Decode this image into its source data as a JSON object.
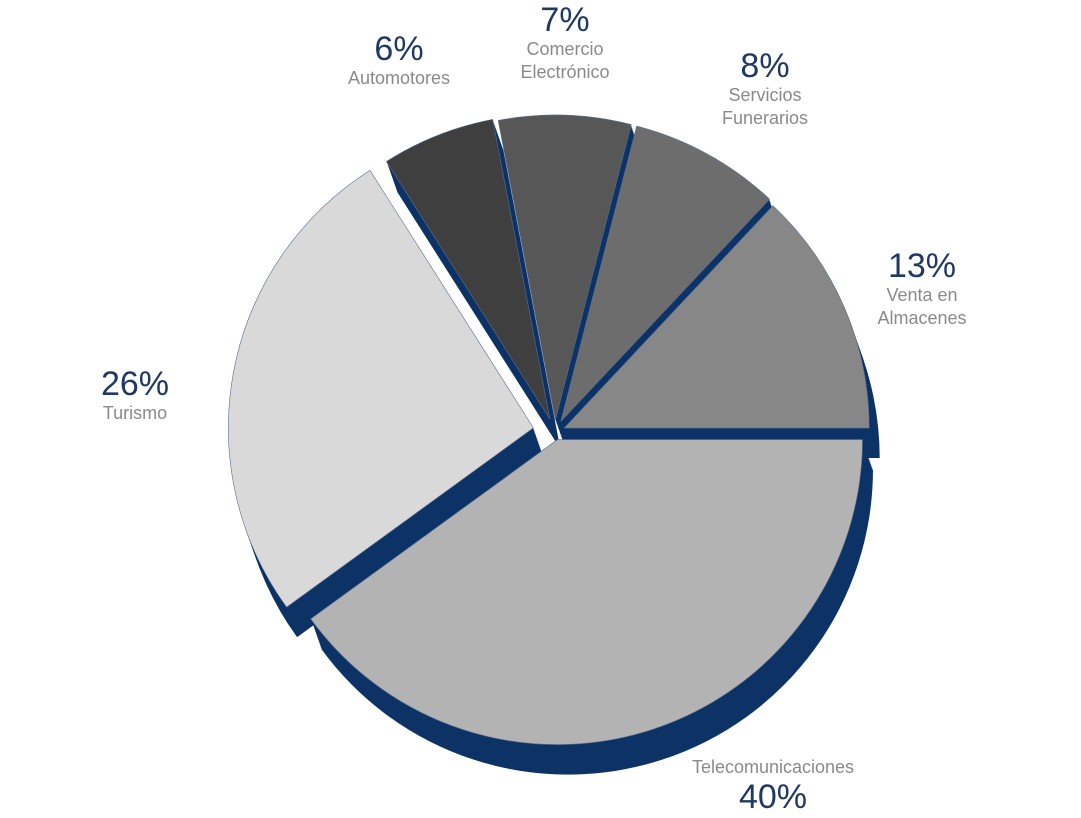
{
  "chart_data": {
    "type": "pie",
    "categories": [
      "Telecomunicaciones",
      "Turismo",
      "Automotores",
      "Comercio Electrónico",
      "Servicios Funerarios",
      "Venta en Almacenes"
    ],
    "values": [
      40,
      26,
      6,
      7,
      8,
      13
    ],
    "value_labels": [
      "40%",
      "26%",
      "6%",
      "7%",
      "8%",
      "13%"
    ],
    "colors": [
      "#b3b3b3",
      "#d9d9d9",
      "#3f3f3f",
      "#575757",
      "#6e6d6e",
      "#878787"
    ],
    "shadow_color": "#0d3366"
  }
}
